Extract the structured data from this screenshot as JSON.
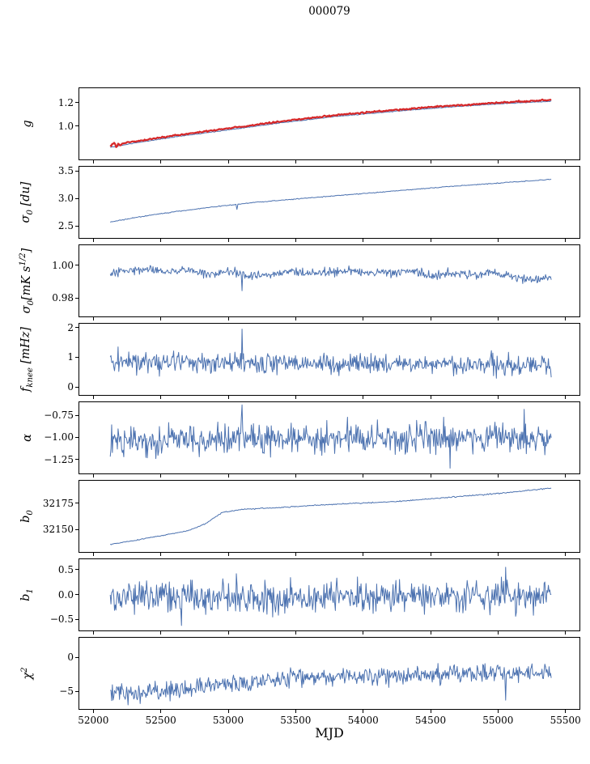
{
  "title": "000079",
  "xlabel": "MJD",
  "colors": {
    "line": "#4c72b0",
    "highlight": "#d62728",
    "axis": "#000000"
  },
  "x_axis": {
    "lim": [
      51890,
      55610
    ],
    "ticks": [
      52000,
      52500,
      53000,
      53500,
      54000,
      54500,
      55000,
      55500
    ],
    "tick_labels": [
      "52000",
      "52500",
      "53000",
      "53500",
      "54000",
      "54500",
      "55000",
      "55500"
    ]
  },
  "chart_data": [
    {
      "type": "line",
      "id": "g",
      "ylabel": "g",
      "ylim": [
        0.72,
        1.32
      ],
      "yticks": [
        1.0,
        1.2
      ],
      "ytick_labels": [
        "1.0",
        "1.2"
      ],
      "series": [
        {
          "name": "g-smooth-fit",
          "color": "#4c72b0",
          "width": 1,
          "n": 450,
          "noise": 0.0015,
          "seed": 11,
          "trend": [
            [
              52120,
              0.822
            ],
            [
              52300,
              0.858
            ],
            [
              52600,
              0.91
            ],
            [
              53000,
              0.97
            ],
            [
              53400,
              1.03
            ],
            [
              53800,
              1.082
            ],
            [
              54200,
              1.122
            ],
            [
              54600,
              1.158
            ],
            [
              55000,
              1.188
            ],
            [
              55400,
              1.21
            ]
          ]
        },
        {
          "name": "g-measured",
          "color": "#d62728",
          "width": 2.2,
          "n": 450,
          "noise": 0.003,
          "seed": 12,
          "start_noise": {
            "until": 52210,
            "amp": 0.013
          },
          "trend": [
            [
              52120,
              0.843
            ],
            [
              52300,
              0.872
            ],
            [
              52600,
              0.922
            ],
            [
              53000,
              0.982
            ],
            [
              53400,
              1.042
            ],
            [
              53800,
              1.094
            ],
            [
              54200,
              1.134
            ],
            [
              54600,
              1.169
            ],
            [
              55000,
              1.198
            ],
            [
              55400,
              1.222
            ]
          ]
        }
      ]
    },
    {
      "type": "line",
      "id": "sigma0-du",
      "ylabel": "σ_{0} [du]",
      "ylim": [
        2.28,
        3.58
      ],
      "yticks": [
        2.5,
        3.0,
        3.5
      ],
      "ytick_labels": [
        "2.5",
        "3.0",
        "3.5"
      ],
      "series": [
        {
          "name": "sigma0-du",
          "color": "#4c72b0",
          "width": 1,
          "n": 450,
          "noise": 0.004,
          "seed": 21,
          "spikes": [
            [
              53060,
              2.8
            ]
          ],
          "trend": [
            [
              52120,
              2.57
            ],
            [
              52300,
              2.65
            ],
            [
              52600,
              2.76
            ],
            [
              52900,
              2.85
            ],
            [
              53200,
              2.93
            ],
            [
              53500,
              2.99
            ],
            [
              53800,
              3.05
            ],
            [
              54100,
              3.11
            ],
            [
              54400,
              3.17
            ],
            [
              54700,
              3.23
            ],
            [
              55000,
              3.28
            ],
            [
              55400,
              3.35
            ]
          ]
        }
      ]
    },
    {
      "type": "line",
      "id": "sigma0-mks",
      "ylabel": "σ_{0}[mK s^{1/2}]",
      "ylim": [
        0.969,
        1.012
      ],
      "yticks": [
        0.98,
        1.0
      ],
      "ytick_labels": [
        "0.98",
        "1.00"
      ],
      "series": [
        {
          "name": "sigma0-mks",
          "color": "#4c72b0",
          "width": 1,
          "n": 620,
          "noise": 0.0013,
          "seed": 31,
          "spikes": [
            [
              53100,
              0.9845
            ]
          ],
          "trend": [
            [
              52120,
              0.994
            ],
            [
              52250,
              0.997
            ],
            [
              52400,
              0.998
            ],
            [
              52550,
              0.996
            ],
            [
              52700,
              0.9975
            ],
            [
              52850,
              0.994
            ],
            [
              53000,
              0.996
            ],
            [
              53150,
              0.993
            ],
            [
              53300,
              0.994
            ],
            [
              53450,
              0.9965
            ],
            [
              53600,
              0.995
            ],
            [
              53750,
              0.9955
            ],
            [
              53900,
              0.9965
            ],
            [
              54050,
              0.995
            ],
            [
              54200,
              0.9955
            ],
            [
              54350,
              0.996
            ],
            [
              54500,
              0.9935
            ],
            [
              54650,
              0.995
            ],
            [
              54800,
              0.9945
            ],
            [
              54950,
              0.996
            ],
            [
              55100,
              0.9925
            ],
            [
              55250,
              0.991
            ],
            [
              55400,
              0.9935
            ]
          ]
        }
      ]
    },
    {
      "type": "line",
      "id": "fknee",
      "ylabel": "f_{knee} [mHz]",
      "ylim": [
        -0.27,
        2.13
      ],
      "yticks": [
        0,
        1,
        2
      ],
      "ytick_labels": [
        "0",
        "1",
        "2"
      ],
      "series": [
        {
          "name": "fknee",
          "color": "#4c72b0",
          "width": 1,
          "n": 620,
          "noise": 0.17,
          "seed": 41,
          "spikes": [
            [
              53100,
              1.95
            ],
            [
              52180,
              1.35
            ]
          ],
          "trend": [
            [
              52120,
              0.85
            ],
            [
              53000,
              0.8
            ],
            [
              54000,
              0.78
            ],
            [
              55400,
              0.75
            ]
          ]
        }
      ]
    },
    {
      "type": "line",
      "id": "alpha",
      "ylabel": "α",
      "ylim": [
        -1.41,
        -0.6
      ],
      "yticks": [
        -1.25,
        -1.0,
        -0.75
      ],
      "ytick_labels": [
        "−1.25",
        "−1.00",
        "−0.75"
      ],
      "series": [
        {
          "name": "alpha",
          "color": "#4c72b0",
          "width": 1,
          "n": 620,
          "noise": 0.085,
          "seed": 51,
          "spikes": [
            [
              53100,
              -0.63
            ],
            [
              55200,
              -0.68
            ],
            [
              54650,
              -1.35
            ]
          ],
          "trend": [
            [
              52120,
              -1.03
            ],
            [
              55400,
              -1.0
            ]
          ]
        }
      ]
    },
    {
      "type": "line",
      "id": "b0",
      "ylabel": "b_{0}",
      "ylim": [
        32129,
        32196
      ],
      "yticks": [
        32150,
        32175
      ],
      "ytick_labels": [
        "32150",
        "32175"
      ],
      "series": [
        {
          "name": "b0",
          "color": "#4c72b0",
          "width": 1,
          "n": 450,
          "noise": 0.25,
          "seed": 61,
          "trend": [
            [
              52120,
              32136
            ],
            [
              52400,
              32142
            ],
            [
              52700,
              32149
            ],
            [
              52820,
              32155
            ],
            [
              52950,
              32166
            ],
            [
              53100,
              32169
            ],
            [
              53400,
              32171
            ],
            [
              53800,
              32174
            ],
            [
              54200,
              32176
            ],
            [
              54600,
              32180
            ],
            [
              55000,
              32184
            ],
            [
              55400,
              32189
            ]
          ]
        }
      ]
    },
    {
      "type": "line",
      "id": "b1",
      "ylabel": "b_{1}",
      "ylim": [
        -0.72,
        0.71
      ],
      "yticks": [
        -0.5,
        0.0,
        0.5
      ],
      "ytick_labels": [
        "−0.5",
        "0.0",
        "0.5"
      ],
      "series": [
        {
          "name": "b1",
          "color": "#4c72b0",
          "width": 1,
          "n": 620,
          "noise": 0.155,
          "seed": 71,
          "spikes": [
            [
              55060,
              0.55
            ],
            [
              52650,
              -0.62
            ],
            [
              53060,
              0.42
            ]
          ],
          "trend": [
            [
              52120,
              -0.06
            ],
            [
              55400,
              -0.02
            ]
          ]
        }
      ]
    },
    {
      "type": "line",
      "id": "chi2",
      "ylabel": "χ^{2}",
      "ylim": [
        -7.6,
        2.9
      ],
      "yticks": [
        -5,
        0
      ],
      "ytick_labels": [
        "−5",
        "0"
      ],
      "series": [
        {
          "name": "chi2",
          "color": "#4c72b0",
          "width": 1,
          "n": 620,
          "noise": 0.65,
          "seed": 81,
          "spikes": [
            [
              52250,
              -7.0
            ],
            [
              55060,
              -6.3
            ]
          ],
          "trend": [
            [
              52120,
              -4.9
            ],
            [
              52350,
              -5.3
            ],
            [
              52700,
              -4.6
            ],
            [
              53000,
              -3.9
            ],
            [
              53300,
              -3.3
            ],
            [
              53700,
              -2.9
            ],
            [
              54200,
              -2.7
            ],
            [
              54800,
              -2.5
            ],
            [
              55400,
              -2.2
            ]
          ]
        }
      ]
    }
  ]
}
